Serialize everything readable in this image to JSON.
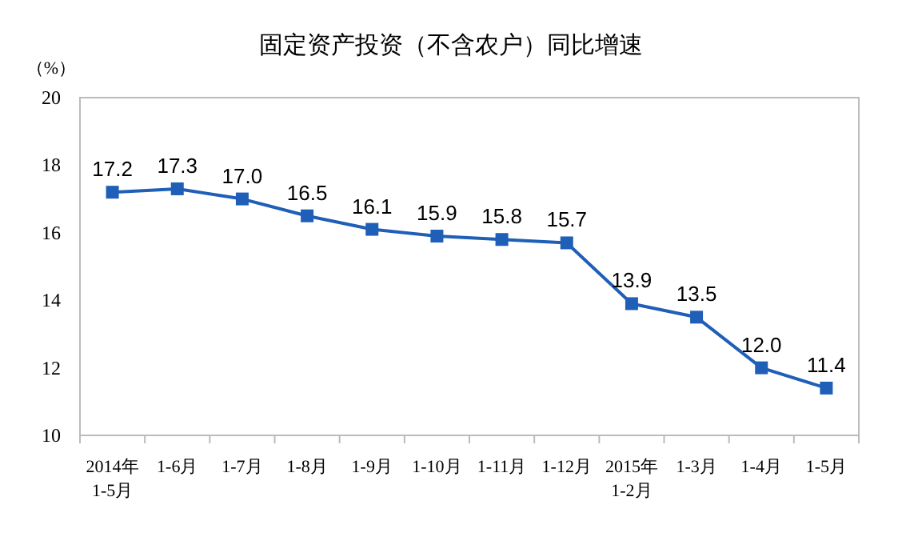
{
  "chart_data": {
    "type": "line",
    "title": "固定资产投资（不含农户）同比增速",
    "ylabel": "（%）",
    "categories": [
      "2014年\n1-5月",
      "1-6月",
      "1-7月",
      "1-8月",
      "1-9月",
      "1-10月",
      "1-11月",
      "1-12月",
      "2015年\n1-2月",
      "1-3月",
      "1-4月",
      "1-5月"
    ],
    "series": [
      {
        "color": "#1f5fb8",
        "values": [
          17.2,
          17.3,
          17.0,
          16.5,
          16.1,
          15.9,
          15.8,
          15.7,
          13.9,
          13.5,
          12.0,
          11.4
        ],
        "value_labels": [
          "17.2",
          "17.3",
          "17.0",
          "16.5",
          "16.1",
          "15.9",
          "15.8",
          "15.7",
          "13.9",
          "13.5",
          "12.0",
          "11.4"
        ]
      }
    ],
    "ylim": [
      10,
      20
    ],
    "yticks": [
      10,
      12,
      14,
      16,
      18,
      20
    ],
    "marker": "square",
    "grid": false
  }
}
